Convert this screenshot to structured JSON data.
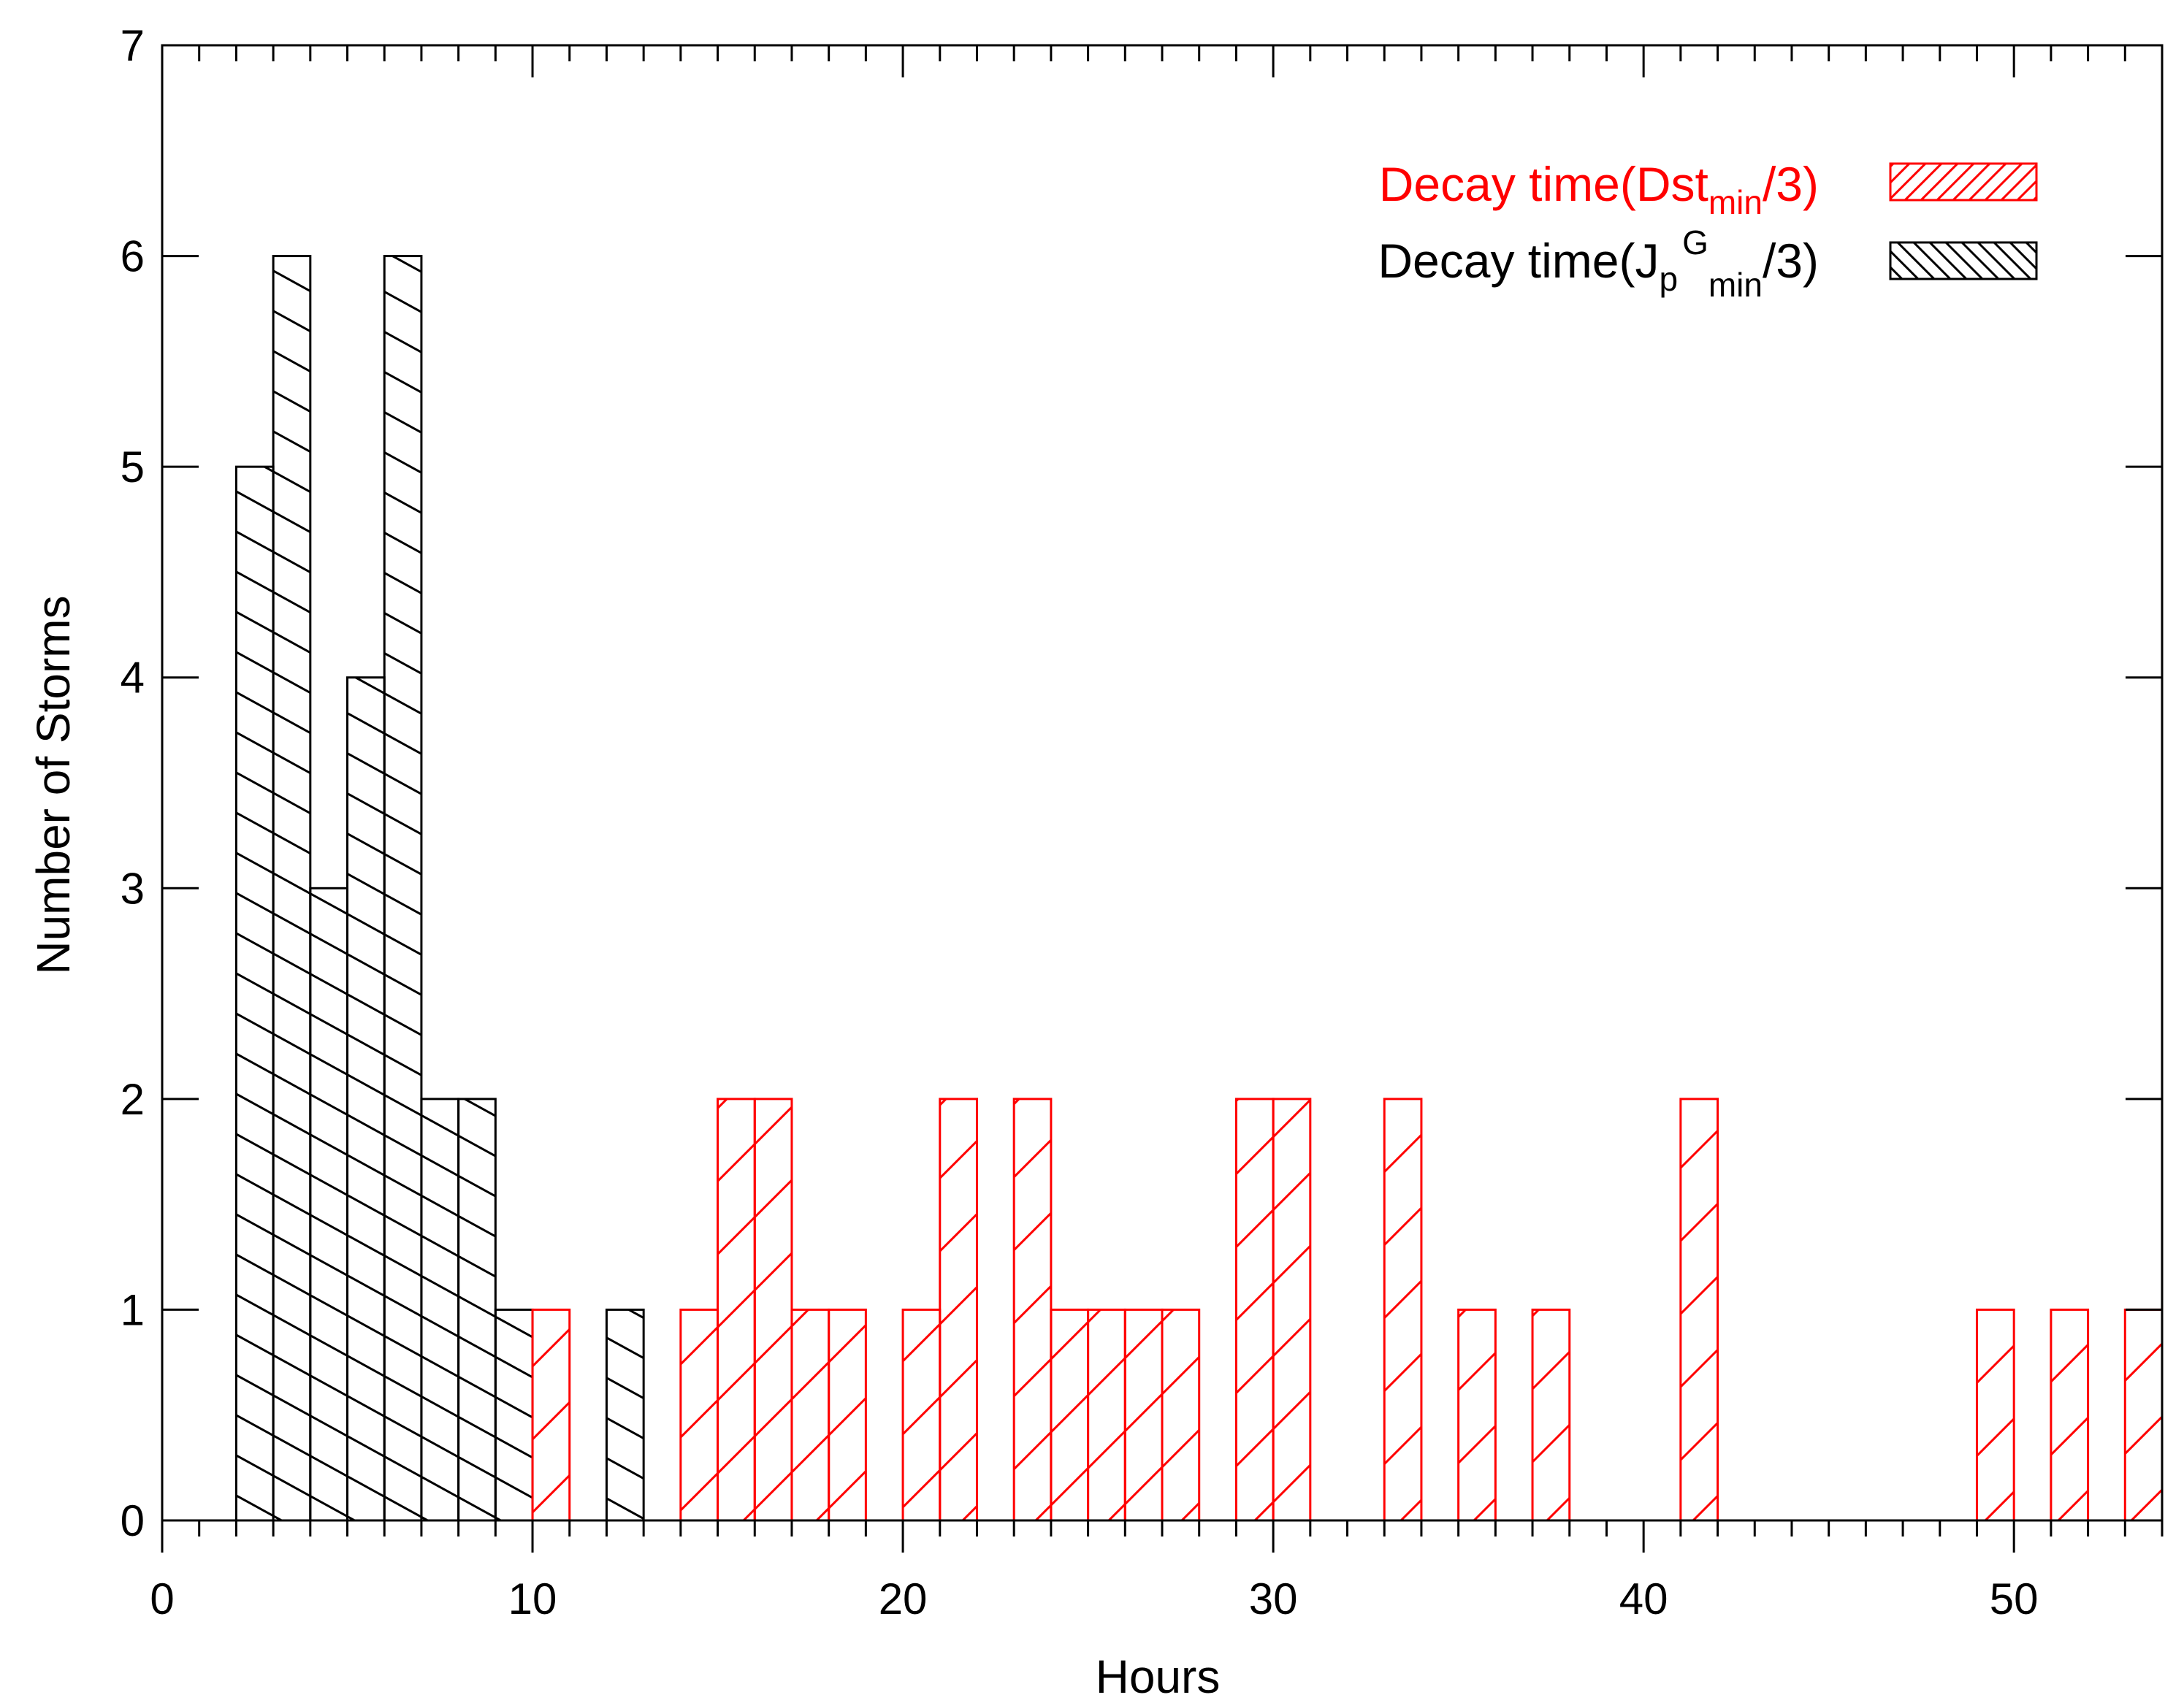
{
  "chart_data": {
    "type": "bar",
    "xlabel": "Hours",
    "ylabel": "Number of Storms",
    "xlim": [
      0,
      54
    ],
    "ylim": [
      0,
      7
    ],
    "x_ticks": [
      "0",
      "10",
      "20",
      "30",
      "40",
      "50"
    ],
    "y_ticks": [
      "0",
      "1",
      "2",
      "3",
      "4",
      "5",
      "6",
      "7"
    ],
    "bin_width": 1,
    "colors": {
      "series_red": "#ff0000",
      "series_black": "#000000"
    },
    "series": [
      {
        "color": "#ff0000",
        "hatch": "forward-diagonal",
        "legend_prefix": "Decay time(Dst",
        "legend_sub": "min",
        "legend_suffix": "/3)",
        "bins": [
          {
            "x": 10,
            "count": 1
          },
          {
            "x": 14,
            "count": 1
          },
          {
            "x": 15,
            "count": 2
          },
          {
            "x": 16,
            "count": 2
          },
          {
            "x": 17,
            "count": 1
          },
          {
            "x": 18,
            "count": 1
          },
          {
            "x": 20,
            "count": 1
          },
          {
            "x": 21,
            "count": 2
          },
          {
            "x": 23,
            "count": 2
          },
          {
            "x": 24,
            "count": 1
          },
          {
            "x": 25,
            "count": 1
          },
          {
            "x": 26,
            "count": 1
          },
          {
            "x": 27,
            "count": 1
          },
          {
            "x": 29,
            "count": 2
          },
          {
            "x": 30,
            "count": 2
          },
          {
            "x": 33,
            "count": 2
          },
          {
            "x": 35,
            "count": 1
          },
          {
            "x": 37,
            "count": 1
          },
          {
            "x": 41,
            "count": 2
          },
          {
            "x": 49,
            "count": 1
          },
          {
            "x": 51,
            "count": 1
          },
          {
            "x": 53,
            "count": 1
          }
        ]
      },
      {
        "color": "#000000",
        "hatch": "backward-diagonal",
        "legend_prefix": "Decay time(J",
        "legend_sub": "p",
        "legend_sup": "G",
        "legend_sub2": "min",
        "legend_suffix": "/3)",
        "bins": [
          {
            "x": 2,
            "count": 5
          },
          {
            "x": 3,
            "count": 6
          },
          {
            "x": 4,
            "count": 3
          },
          {
            "x": 5,
            "count": 4
          },
          {
            "x": 6,
            "count": 6
          },
          {
            "x": 7,
            "count": 2
          },
          {
            "x": 8,
            "count": 2
          },
          {
            "x": 9,
            "count": 1
          },
          {
            "x": 12,
            "count": 1
          }
        ]
      }
    ]
  }
}
